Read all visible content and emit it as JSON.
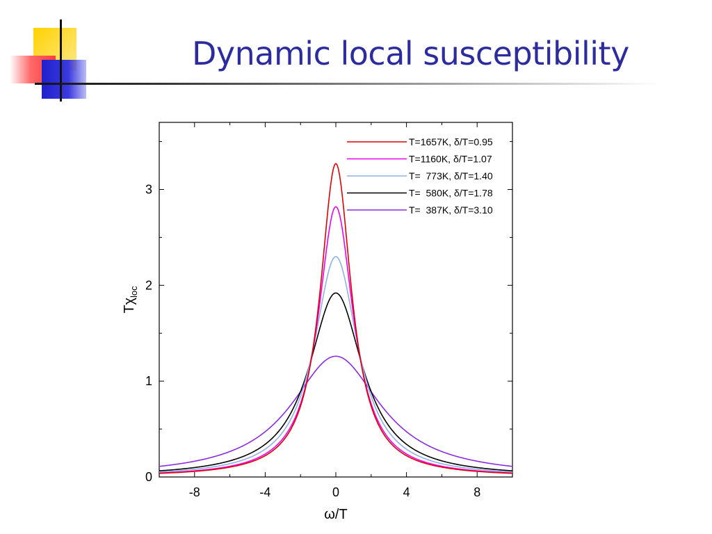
{
  "slide": {
    "title": "Dynamic local susceptibility"
  },
  "chart_data": {
    "type": "line",
    "xlabel": "ω/T",
    "ylabel": "Tχ_loc",
    "xlim": [
      -10,
      10
    ],
    "ylim": [
      0,
      3.7
    ],
    "xticks": [
      -8,
      -4,
      0,
      4,
      8
    ],
    "yticks": [
      0,
      1,
      2,
      3
    ],
    "grid": false,
    "legend_position": "top-right",
    "series": [
      {
        "name": "T=1657K, δ/T=0.95",
        "color": "#dd0000",
        "peak": 3.27,
        "width": 1.08
      },
      {
        "name": "T=1160K, δ/T=1.07",
        "color": "#ee00ee",
        "peak": 2.82,
        "width": 1.22
      },
      {
        "name": "T=  773K, δ/T=1.40",
        "color": "#8fb0e8",
        "peak": 2.3,
        "width": 1.52
      },
      {
        "name": "T=  580K, δ/T=1.78",
        "color": "#000000",
        "peak": 1.92,
        "width": 1.86
      },
      {
        "name": "T=  387K, δ/T=3.10",
        "color": "#8a2be2",
        "peak": 1.26,
        "width": 3.1
      }
    ]
  }
}
